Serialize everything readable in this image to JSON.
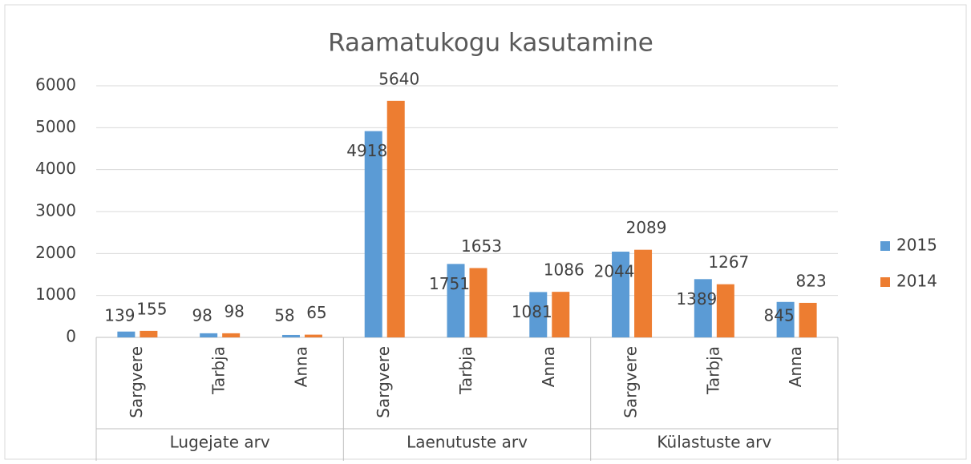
{
  "chart_data": {
    "type": "bar",
    "title": "Raamatukogu kasutamine",
    "categories": [
      "Sargvere",
      "Tarbja",
      "Anna",
      "Sargvere",
      "Tarbja",
      "Anna",
      "Sargvere",
      "Tarbja",
      "Anna"
    ],
    "groups": [
      "Lugejate arv",
      "Laenutuste arv",
      "Külastuste arv"
    ],
    "series": [
      {
        "name": "2015",
        "color": "#5b9bd5",
        "values": [
          139,
          98,
          58,
          4918,
          1751,
          1081,
          2044,
          1389,
          845
        ]
      },
      {
        "name": "2014",
        "color": "#ed7d31",
        "values": [
          155,
          98,
          65,
          5640,
          1653,
          1086,
          2089,
          1267,
          823
        ]
      }
    ],
    "ylim": [
      0,
      6000
    ],
    "yticks": [
      0,
      1000,
      2000,
      3000,
      4000,
      5000,
      6000
    ],
    "grid": true,
    "legend": "right"
  }
}
